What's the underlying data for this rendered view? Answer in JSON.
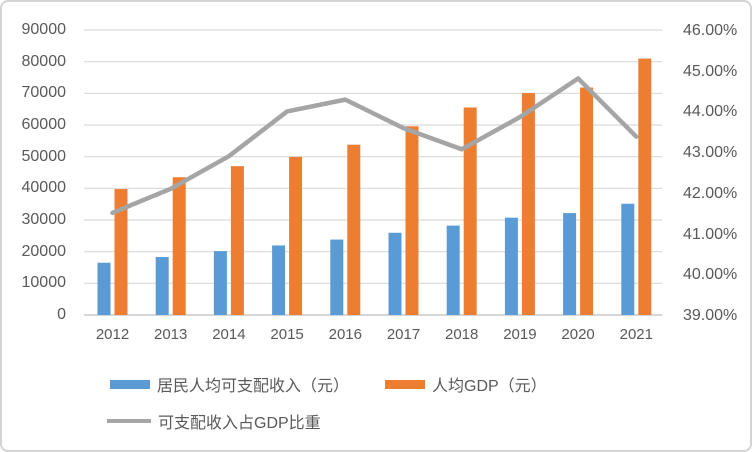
{
  "chart_data": {
    "type": "bar",
    "subtype": "combo-bar-line-dual-axis",
    "title": "",
    "categories": [
      "2012",
      "2013",
      "2014",
      "2015",
      "2016",
      "2017",
      "2018",
      "2019",
      "2020",
      "2021"
    ],
    "series": [
      {
        "name": "居民人均可支配收入（元）",
        "type": "bar",
        "axis": "left",
        "color": "#5B9BD5",
        "values": [
          16510,
          18311,
          20167,
          21966,
          23821,
          25974,
          28228,
          30733,
          32189,
          35128
        ]
      },
      {
        "name": "人均GDP（元）",
        "type": "bar",
        "axis": "left",
        "color": "#ED7D31",
        "values": [
          39771,
          43497,
          47005,
          49922,
          53783,
          59592,
          65534,
          70078,
          71828,
          80976
        ]
      },
      {
        "name": "可支配收入占GDP比重",
        "type": "line",
        "axis": "right",
        "color": "#A5A5A5",
        "values": [
          41.51,
          42.1,
          42.9,
          44.0,
          44.29,
          43.59,
          43.07,
          43.86,
          44.81,
          43.38
        ]
      }
    ],
    "left_axis": {
      "min": 0,
      "max": 90000,
      "step": 10000,
      "tick_labels": [
        "90000",
        "80000",
        "70000",
        "60000",
        "50000",
        "40000",
        "30000",
        "20000",
        "10000",
        "0"
      ]
    },
    "right_axis": {
      "min": 39,
      "max": 46,
      "step": 1,
      "tick_labels": [
        "46.00%",
        "45.00%",
        "44.00%",
        "43.00%",
        "42.00%",
        "41.00%",
        "40.00%",
        "39.00%"
      ]
    },
    "grid": true,
    "gridline_color": "#D9D9D9",
    "axis_line_color": "#C9C9C9",
    "text_color": "#595959",
    "legend_position": "bottom-left"
  }
}
